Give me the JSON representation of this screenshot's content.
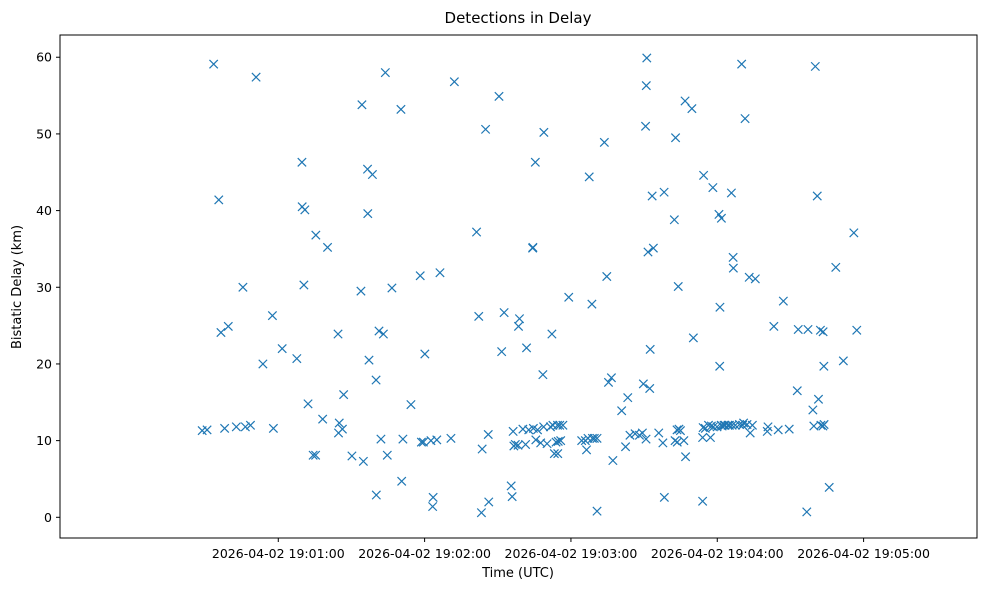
{
  "chart_data": {
    "type": "scatter",
    "title": "Detections in Delay",
    "xlabel": "Time (UTC)",
    "ylabel": "Bistatic Delay (km)",
    "marker": "x",
    "color": "#1f77b4",
    "grid": false,
    "legend": "none",
    "x_start": "2026-04-02 19:00:00",
    "xlim_seconds": [
      -29.5,
      346.5
    ],
    "xtick_labels": [
      "2026-04-02 19:01:00",
      "2026-04-02 19:02:00",
      "2026-04-02 19:03:00",
      "2026-04-02 19:04:00",
      "2026-04-02 19:05:00"
    ],
    "xtick_seconds": [
      60,
      120,
      180,
      240,
      300
    ],
    "ylim": [
      -2.7,
      62.9
    ],
    "ytick_labels": [
      "0",
      "10",
      "20",
      "30",
      "40",
      "50",
      "60"
    ],
    "ytick_values": [
      0,
      10,
      20,
      30,
      40,
      50,
      60
    ],
    "points": [
      [
        28.8,
        11.3
      ],
      [
        30.8,
        11.4
      ],
      [
        33.5,
        59.1
      ],
      [
        35.6,
        41.4
      ],
      [
        36.5,
        24.1
      ],
      [
        38.0,
        11.6
      ],
      [
        39.5,
        24.9
      ],
      [
        42.8,
        11.8
      ],
      [
        45.5,
        30.0
      ],
      [
        46.5,
        11.8
      ],
      [
        48.6,
        12.0
      ],
      [
        50.9,
        57.4
      ],
      [
        53.7,
        20.0
      ],
      [
        57.6,
        26.3
      ],
      [
        58.0,
        11.6
      ],
      [
        61.6,
        22.0
      ],
      [
        67.6,
        20.7
      ],
      [
        69.7,
        46.3
      ],
      [
        69.8,
        40.5
      ],
      [
        70.5,
        30.3
      ],
      [
        70.9,
        40.1
      ],
      [
        72.2,
        14.8
      ],
      [
        74.3,
        8.1
      ],
      [
        75.3,
        8.1
      ],
      [
        75.4,
        36.8
      ],
      [
        78.2,
        12.8
      ],
      [
        80.2,
        35.2
      ],
      [
        84.5,
        23.9
      ],
      [
        84.7,
        11.0
      ],
      [
        85.0,
        12.3
      ],
      [
        86.3,
        11.5
      ],
      [
        86.8,
        16.0
      ],
      [
        90.2,
        8.0
      ],
      [
        93.9,
        29.5
      ],
      [
        94.3,
        53.8
      ],
      [
        94.9,
        7.3
      ],
      [
        96.6,
        45.4
      ],
      [
        96.7,
        39.6
      ],
      [
        97.2,
        20.5
      ],
      [
        98.6,
        44.7
      ],
      [
        100.1,
        17.9
      ],
      [
        100.2,
        2.9
      ],
      [
        101.3,
        24.3
      ],
      [
        102.1,
        10.2
      ],
      [
        103.1,
        23.9
      ],
      [
        103.9,
        58.0
      ],
      [
        104.7,
        8.1
      ],
      [
        106.6,
        29.9
      ],
      [
        110.3,
        53.2
      ],
      [
        110.6,
        4.7
      ],
      [
        111.1,
        10.2
      ],
      [
        114.4,
        14.7
      ],
      [
        118.2,
        31.5
      ],
      [
        118.7,
        9.8
      ],
      [
        119.5,
        9.8
      ],
      [
        120.1,
        21.3
      ],
      [
        122.6,
        10.0
      ],
      [
        123.3,
        1.4
      ],
      [
        123.5,
        2.6
      ],
      [
        125.0,
        10.1
      ],
      [
        126.3,
        31.9
      ],
      [
        130.8,
        10.3
      ],
      [
        132.2,
        56.8
      ],
      [
        141.3,
        37.2
      ],
      [
        142.2,
        26.2
      ],
      [
        143.3,
        0.6
      ],
      [
        143.6,
        8.9
      ],
      [
        145.0,
        50.6
      ],
      [
        146.1,
        10.8
      ],
      [
        146.3,
        2.0
      ],
      [
        150.5,
        54.9
      ],
      [
        151.6,
        21.6
      ],
      [
        152.6,
        26.7
      ],
      [
        155.5,
        4.1
      ],
      [
        155.9,
        2.7
      ],
      [
        156.3,
        11.2
      ],
      [
        156.6,
        9.3
      ],
      [
        157.2,
        9.5
      ],
      [
        158.3,
        9.4
      ],
      [
        158.5,
        24.9
      ],
      [
        158.9,
        25.9
      ],
      [
        160.3,
        11.5
      ],
      [
        161.4,
        9.5
      ],
      [
        161.8,
        22.1
      ],
      [
        162.7,
        11.4
      ],
      [
        164.3,
        35.1
      ],
      [
        164.4,
        35.2
      ],
      [
        164.6,
        11.6
      ],
      [
        165.4,
        46.3
      ],
      [
        165.6,
        10.1
      ],
      [
        166.3,
        11.4
      ],
      [
        167.6,
        9.7
      ],
      [
        168.5,
        18.6
      ],
      [
        168.9,
        50.2
      ],
      [
        168.8,
        11.8
      ],
      [
        170.2,
        9.6
      ],
      [
        171.6,
        11.8
      ],
      [
        172.2,
        23.9
      ],
      [
        172.6,
        12.0
      ],
      [
        173.2,
        8.3
      ],
      [
        173.9,
        9.8
      ],
      [
        174.5,
        12.0
      ],
      [
        174.6,
        8.3
      ],
      [
        174.8,
        9.9
      ],
      [
        175.4,
        12.0
      ],
      [
        175.8,
        10.0
      ],
      [
        176.7,
        12.0
      ],
      [
        179.1,
        28.7
      ],
      [
        184.4,
        10.0
      ],
      [
        185.9,
        10.0
      ],
      [
        186.4,
        8.8
      ],
      [
        187.0,
        10.3
      ],
      [
        187.5,
        44.4
      ],
      [
        188.6,
        27.8
      ],
      [
        188.8,
        10.3
      ],
      [
        189.6,
        10.3
      ],
      [
        190.7,
        0.8
      ],
      [
        190.7,
        10.3
      ],
      [
        193.7,
        48.9
      ],
      [
        194.7,
        31.4
      ],
      [
        195.4,
        17.6
      ],
      [
        196.6,
        18.2
      ],
      [
        197.2,
        7.4
      ],
      [
        200.8,
        13.9
      ],
      [
        202.4,
        9.2
      ],
      [
        203.3,
        15.6
      ],
      [
        204.2,
        10.7
      ],
      [
        206.3,
        10.9
      ],
      [
        208.1,
        10.7
      ],
      [
        209.3,
        11.0
      ],
      [
        209.7,
        17.4
      ],
      [
        210.8,
        10.2
      ],
      [
        210.6,
        51.0
      ],
      [
        210.9,
        56.3
      ],
      [
        211.1,
        59.9
      ],
      [
        211.6,
        34.6
      ],
      [
        212.3,
        16.8
      ],
      [
        212.5,
        21.9
      ],
      [
        213.3,
        41.9
      ],
      [
        213.8,
        35.1
      ],
      [
        216.0,
        11.0
      ],
      [
        217.7,
        9.7
      ],
      [
        218.2,
        42.4
      ],
      [
        218.3,
        2.6
      ],
      [
        222.4,
        38.8
      ],
      [
        222.7,
        10.0
      ],
      [
        222.9,
        49.5
      ],
      [
        223.5,
        11.4
      ],
      [
        223.6,
        9.8
      ],
      [
        224.0,
        30.1
      ],
      [
        224.3,
        11.5
      ],
      [
        224.9,
        11.3
      ],
      [
        226.3,
        10.0
      ],
      [
        226.8,
        54.3
      ],
      [
        227.0,
        7.9
      ],
      [
        229.6,
        53.3
      ],
      [
        230.2,
        23.4
      ],
      [
        234.0,
        2.1
      ],
      [
        234.0,
        10.4
      ],
      [
        234.2,
        11.7
      ],
      [
        234.4,
        44.6
      ],
      [
        235.1,
        11.6
      ],
      [
        236.4,
        12.0
      ],
      [
        237.2,
        10.4
      ],
      [
        237.6,
        11.9
      ],
      [
        238.2,
        43.0
      ],
      [
        238.4,
        11.8
      ],
      [
        239.9,
        11.8
      ],
      [
        240.7,
        39.5
      ],
      [
        241.0,
        19.7
      ],
      [
        241.1,
        27.4
      ],
      [
        241.6,
        12.0
      ],
      [
        241.7,
        39.0
      ],
      [
        242.0,
        11.9
      ],
      [
        242.8,
        12.0
      ],
      [
        243.2,
        12.0
      ],
      [
        244.4,
        12.0
      ],
      [
        245.0,
        12.0
      ],
      [
        245.8,
        42.3
      ],
      [
        246.1,
        12.0
      ],
      [
        246.5,
        33.9
      ],
      [
        246.6,
        32.5
      ],
      [
        247.4,
        12.0
      ],
      [
        249.1,
        12.1
      ],
      [
        250.0,
        59.1
      ],
      [
        250.4,
        12.0
      ],
      [
        250.8,
        12.3
      ],
      [
        251.4,
        52.0
      ],
      [
        252.2,
        12.1
      ],
      [
        253.1,
        31.3
      ],
      [
        253.5,
        11.0
      ],
      [
        254.4,
        12.0
      ],
      [
        255.6,
        31.1
      ],
      [
        260.5,
        11.2
      ],
      [
        260.8,
        11.8
      ],
      [
        263.2,
        24.9
      ],
      [
        265.0,
        11.4
      ],
      [
        267.1,
        28.2
      ],
      [
        269.5,
        11.5
      ],
      [
        272.8,
        16.5
      ],
      [
        273.2,
        24.5
      ],
      [
        276.7,
        0.7
      ],
      [
        277.2,
        24.5
      ],
      [
        279.2,
        14.0
      ],
      [
        279.6,
        11.9
      ],
      [
        280.2,
        58.8
      ],
      [
        281.0,
        41.9
      ],
      [
        281.5,
        15.4
      ],
      [
        282.3,
        24.4
      ],
      [
        282.5,
        12.0
      ],
      [
        283.3,
        11.9
      ],
      [
        283.4,
        24.2
      ],
      [
        283.7,
        19.7
      ],
      [
        283.8,
        12.1
      ],
      [
        285.9,
        3.9
      ],
      [
        288.6,
        32.6
      ],
      [
        291.7,
        20.4
      ],
      [
        296.0,
        37.1
      ],
      [
        297.2,
        24.4
      ]
    ]
  }
}
